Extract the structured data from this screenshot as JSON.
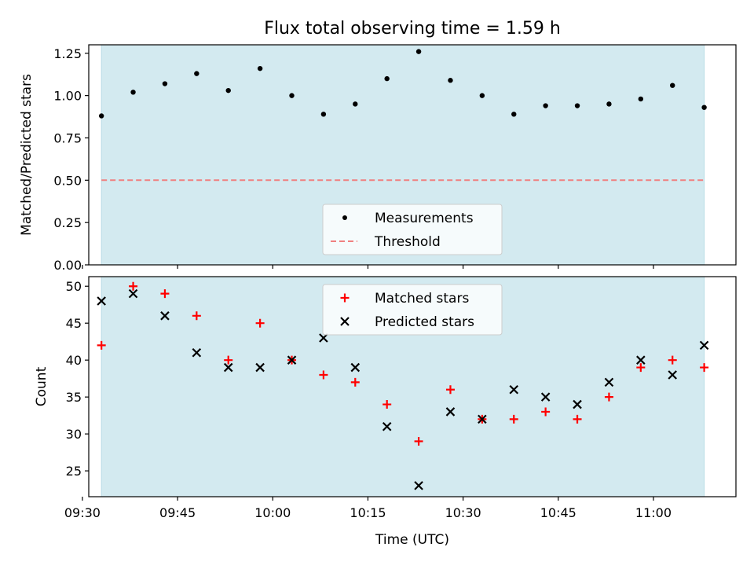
{
  "title": "Flux total observing time = 1.59 h",
  "colors": {
    "band": "#d3eaf0",
    "band_edge": "#b9dce6",
    "measurement": "#000000",
    "threshold": "#f08080",
    "matched": "#ff0000",
    "predicted": "#000000"
  },
  "chart_data": [
    {
      "type": "scatter",
      "ylabel": "Matched/Predicted stars",
      "xlabel": "",
      "ylim": [
        0,
        1.3
      ],
      "yticks": [
        "0.00",
        "0.25",
        "0.50",
        "0.75",
        "1.00",
        "1.25"
      ],
      "xrange": [
        "09:31",
        "11:13"
      ],
      "shaded_span": [
        "09:33",
        "11:08"
      ],
      "threshold": 0.5,
      "legend_position": "lower-center",
      "legend": [
        "Measurements",
        "Threshold"
      ],
      "series": [
        {
          "name": "Measurements",
          "marker": "dot",
          "x": [
            "09:33",
            "09:38",
            "09:43",
            "09:48",
            "09:53",
            "09:58",
            "10:03",
            "10:08",
            "10:13",
            "10:18",
            "10:23",
            "10:28",
            "10:33",
            "10:38",
            "10:43",
            "10:48",
            "10:53",
            "10:58",
            "11:03",
            "11:08"
          ],
          "y": [
            0.88,
            1.02,
            1.07,
            1.13,
            1.03,
            1.16,
            1.0,
            0.89,
            0.95,
            1.1,
            1.26,
            1.09,
            1.0,
            0.89,
            0.94,
            0.94,
            0.95,
            0.98,
            1.06,
            0.93
          ]
        }
      ]
    },
    {
      "type": "scatter",
      "ylabel": "Count",
      "xlabel": "Time (UTC)",
      "ylim": [
        21.5,
        51.3
      ],
      "yticks": [
        "25",
        "30",
        "35",
        "40",
        "45",
        "50"
      ],
      "xticks": [
        "09:30",
        "09:45",
        "10:00",
        "10:15",
        "10:30",
        "10:45",
        "11:00"
      ],
      "xrange": [
        "09:31",
        "11:13"
      ],
      "shaded_span": [
        "09:33",
        "11:08"
      ],
      "legend_position": "top-center",
      "legend": [
        "Matched stars",
        "Predicted stars"
      ],
      "series": [
        {
          "name": "Matched stars",
          "marker": "plus",
          "x": [
            "09:33",
            "09:38",
            "09:43",
            "09:48",
            "09:53",
            "09:58",
            "10:03",
            "10:08",
            "10:13",
            "10:18",
            "10:23",
            "10:28",
            "10:33",
            "10:38",
            "10:43",
            "10:48",
            "10:53",
            "10:58",
            "11:03",
            "11:08"
          ],
          "y": [
            42,
            50,
            49,
            46,
            40,
            45,
            40,
            38,
            37,
            34,
            29,
            36,
            32,
            32,
            33,
            32,
            35,
            39,
            40,
            39
          ]
        },
        {
          "name": "Predicted stars",
          "marker": "x",
          "x": [
            "09:33",
            "09:38",
            "09:43",
            "09:48",
            "09:53",
            "09:58",
            "10:03",
            "10:08",
            "10:13",
            "10:18",
            "10:23",
            "10:28",
            "10:33",
            "10:38",
            "10:43",
            "10:48",
            "10:53",
            "10:58",
            "11:03",
            "11:08"
          ],
          "y": [
            48,
            49,
            46,
            41,
            39,
            39,
            40,
            43,
            39,
            31,
            23,
            33,
            32,
            36,
            35,
            34,
            37,
            40,
            38,
            42
          ]
        }
      ]
    }
  ]
}
